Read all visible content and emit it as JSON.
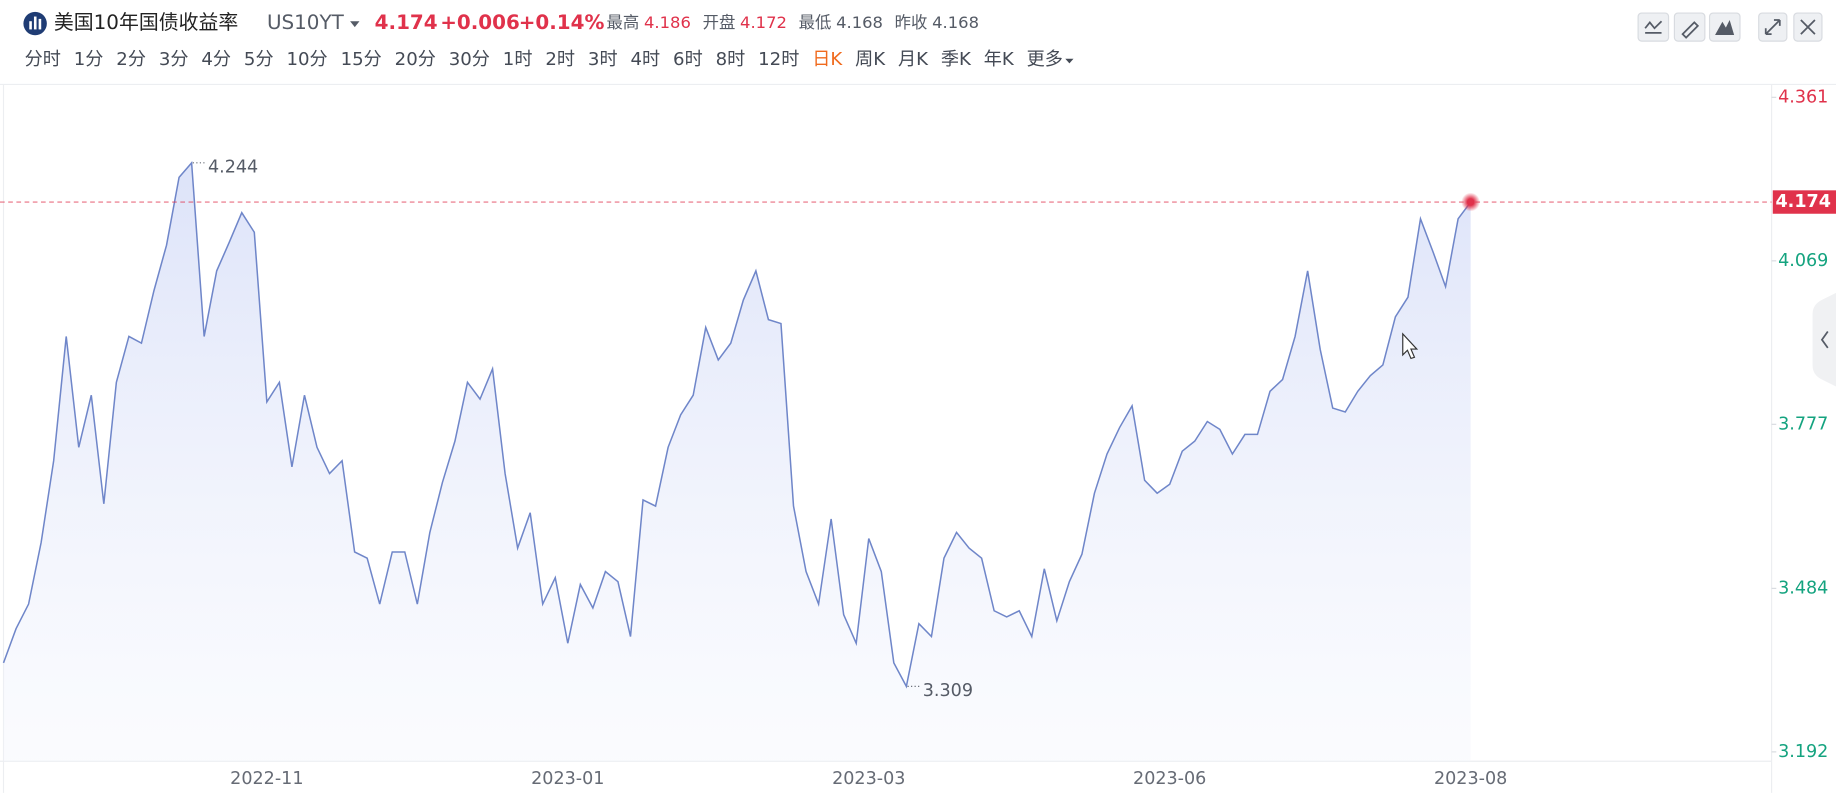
{
  "header": {
    "title": "美国10年国债收益率",
    "symbol": "US10YT",
    "price": "4.174",
    "change": "+0.006",
    "change_pct": "+0.14%",
    "stats": [
      {
        "label": "最高",
        "value": "4.186",
        "color": "#e0324b"
      },
      {
        "label": "开盘",
        "value": "4.172",
        "color": "#e0324b"
      },
      {
        "label": "最低",
        "value": "4.168",
        "color": "#555b66"
      },
      {
        "label": "昨收",
        "value": "4.168",
        "color": "#555b66"
      }
    ]
  },
  "tabs": [
    "分时",
    "1分",
    "2分",
    "3分",
    "4分",
    "5分",
    "10分",
    "15分",
    "20分",
    "30分",
    "1时",
    "2时",
    "3时",
    "4时",
    "6时",
    "8时",
    "12时",
    "日K",
    "周K",
    "月K",
    "季K",
    "年K",
    "更多"
  ],
  "active_tab": "日K",
  "chart_data": {
    "type": "line",
    "color": "#6f86c9",
    "up_color": "#e0324b",
    "down_color": "#14a37f",
    "categories": [
      null,
      null,
      null,
      null,
      null,
      null,
      null,
      null,
      null,
      null,
      null,
      null,
      null,
      null,
      null,
      null,
      null,
      null,
      null,
      null,
      null,
      "2022-11",
      null,
      null,
      null,
      null,
      null,
      null,
      null,
      null,
      null,
      null,
      null,
      null,
      null,
      null,
      null,
      null,
      null,
      null,
      null,
      null,
      null,
      null,
      null,
      "2023-01",
      null,
      null,
      null,
      null,
      null,
      null,
      null,
      null,
      null,
      null,
      null,
      null,
      null,
      null,
      null,
      null,
      null,
      null,
      null,
      null,
      null,
      null,
      null,
      "2023-03",
      null,
      null,
      null,
      null,
      null,
      null,
      null,
      null,
      null,
      null,
      null,
      null,
      null,
      null,
      null,
      null,
      null,
      null,
      null,
      null,
      null,
      null,
      null,
      "2023-06",
      null,
      null,
      null,
      null,
      null,
      null,
      null,
      null,
      null,
      null,
      null,
      null,
      null,
      null,
      null,
      null,
      null,
      null,
      null,
      null,
      null,
      null,
      null,
      "2023-08",
      null,
      null,
      null,
      null,
      null,
      null,
      null,
      null,
      null,
      null,
      null,
      null,
      null,
      null,
      null,
      null,
      null,
      null,
      null,
      null,
      null,
      null,
      null,
      null
    ],
    "values": [
      3.351,
      3.412,
      3.456,
      3.566,
      3.712,
      3.934,
      3.736,
      3.829,
      3.635,
      3.852,
      3.934,
      3.922,
      4.016,
      4.097,
      4.218,
      4.244,
      3.934,
      4.051,
      4.102,
      4.155,
      4.12,
      3.817,
      3.852,
      3.701,
      3.829,
      3.736,
      3.689,
      3.712,
      3.549,
      3.538,
      3.456,
      3.549,
      3.549,
      3.456,
      3.584,
      3.673,
      3.747,
      3.852,
      3.822,
      3.876,
      3.689,
      3.556,
      3.619,
      3.456,
      3.503,
      3.386,
      3.491,
      3.449,
      3.514,
      3.496,
      3.398,
      3.642,
      3.631,
      3.736,
      3.794,
      3.829,
      3.95,
      3.892,
      3.922,
      3.999,
      4.051,
      3.964,
      3.957,
      3.631,
      3.514,
      3.456,
      3.608,
      3.437,
      3.386,
      3.573,
      3.514,
      3.351,
      3.309,
      3.421,
      3.398,
      3.538,
      3.584,
      3.556,
      3.538,
      3.444,
      3.433,
      3.444,
      3.398,
      3.519,
      3.426,
      3.496,
      3.545,
      3.654,
      3.724,
      3.771,
      3.81,
      3.677,
      3.654,
      3.67,
      3.729,
      3.747,
      3.782,
      3.768,
      3.724,
      3.759,
      3.759,
      3.836,
      3.857,
      3.934,
      4.051,
      3.911,
      3.806,
      3.799,
      3.836,
      3.864,
      3.883,
      3.969,
      4.004,
      4.144,
      4.085,
      4.023,
      4.144,
      4.174,
      null,
      null,
      null,
      null,
      null,
      null,
      null,
      null,
      null,
      null,
      null,
      null,
      null,
      null,
      null,
      null,
      null,
      null,
      null,
      null,
      null,
      null,
      null,
      null
    ],
    "ylim": [
      3.192,
      4.361
    ],
    "yticks": [
      4.361,
      4.069,
      3.777,
      3.484,
      3.192
    ]
  }
}
